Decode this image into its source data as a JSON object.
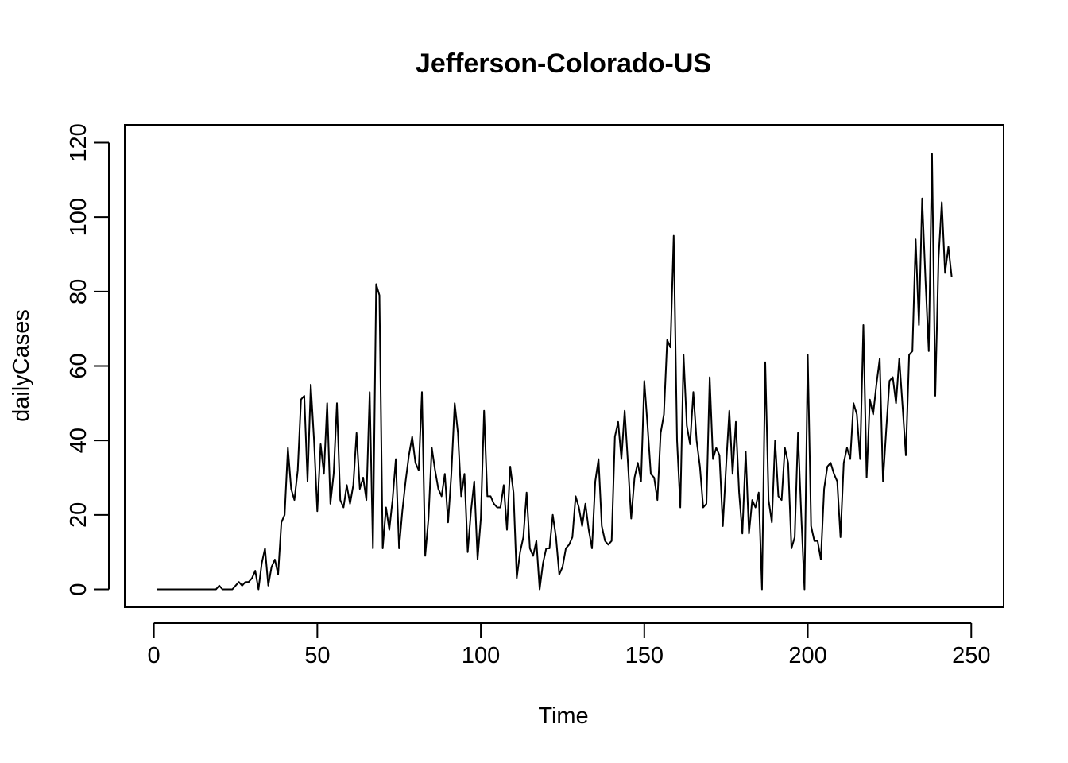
{
  "chart_data": {
    "type": "line",
    "title": "Jefferson-Colorado-US",
    "xlabel": "Time",
    "ylabel": "dailyCases",
    "xlim": [
      -8.9,
      259.9
    ],
    "ylim": [
      -4.8,
      124.8
    ],
    "x_ticks": [
      0,
      50,
      100,
      150,
      200,
      250
    ],
    "y_ticks": [
      0,
      20,
      40,
      60,
      80,
      100,
      120
    ],
    "x_tick_labels": [
      "0",
      "50",
      "100",
      "150",
      "200",
      "250"
    ],
    "y_tick_labels": [
      "0",
      "20",
      "40",
      "60",
      "80",
      "100",
      "120"
    ],
    "color": "#000000",
    "x_start": 1,
    "values": [
      0,
      0,
      0,
      0,
      0,
      0,
      0,
      0,
      0,
      0,
      0,
      0,
      0,
      0,
      0,
      0,
      0,
      0,
      0,
      1,
      0,
      0,
      0,
      0,
      1,
      2,
      1,
      2,
      2,
      3,
      5,
      0,
      7,
      11,
      1,
      6,
      8,
      4,
      18,
      20,
      38,
      27,
      24,
      32,
      51,
      52,
      29,
      55,
      40,
      21,
      39,
      31,
      50,
      23,
      31,
      50,
      24,
      22,
      28,
      23,
      28,
      42,
      27,
      30,
      24,
      53,
      11,
      82,
      79,
      11,
      22,
      16,
      24,
      35,
      11,
      21,
      29,
      36,
      41,
      34,
      32,
      53,
      9,
      19,
      38,
      32,
      27,
      25,
      31,
      18,
      31,
      50,
      42,
      25,
      31,
      10,
      21,
      29,
      8,
      19,
      48,
      25,
      25,
      23,
      22,
      22,
      28,
      16,
      33,
      26,
      3,
      10,
      14,
      26,
      11,
      9,
      13,
      0,
      7,
      11,
      11,
      20,
      14,
      4,
      6,
      11,
      12,
      14,
      25,
      22,
      17,
      23,
      16,
      11,
      29,
      35,
      17,
      13,
      12,
      13,
      41,
      45,
      35,
      48,
      34,
      19,
      30,
      34,
      29,
      56,
      44,
      31,
      30,
      24,
      42,
      47,
      67,
      65,
      95,
      40,
      22,
      63,
      44,
      39,
      53,
      40,
      33,
      22,
      23,
      57,
      35,
      38,
      36,
      17,
      33,
      48,
      31,
      45,
      26,
      15,
      37,
      15,
      24,
      22,
      26,
      0,
      61,
      24,
      18,
      40,
      25,
      24,
      38,
      34,
      11,
      14,
      42,
      20,
      0,
      63,
      17,
      13,
      13,
      8,
      27,
      33,
      34,
      31,
      29,
      14,
      34,
      38,
      35,
      50,
      47,
      35,
      71,
      30,
      51,
      47,
      55,
      62,
      29,
      43,
      56,
      57,
      50,
      62,
      49,
      36,
      63,
      64,
      94,
      71,
      105,
      83,
      64,
      117,
      52,
      89,
      104,
      85,
      92,
      84
    ]
  }
}
